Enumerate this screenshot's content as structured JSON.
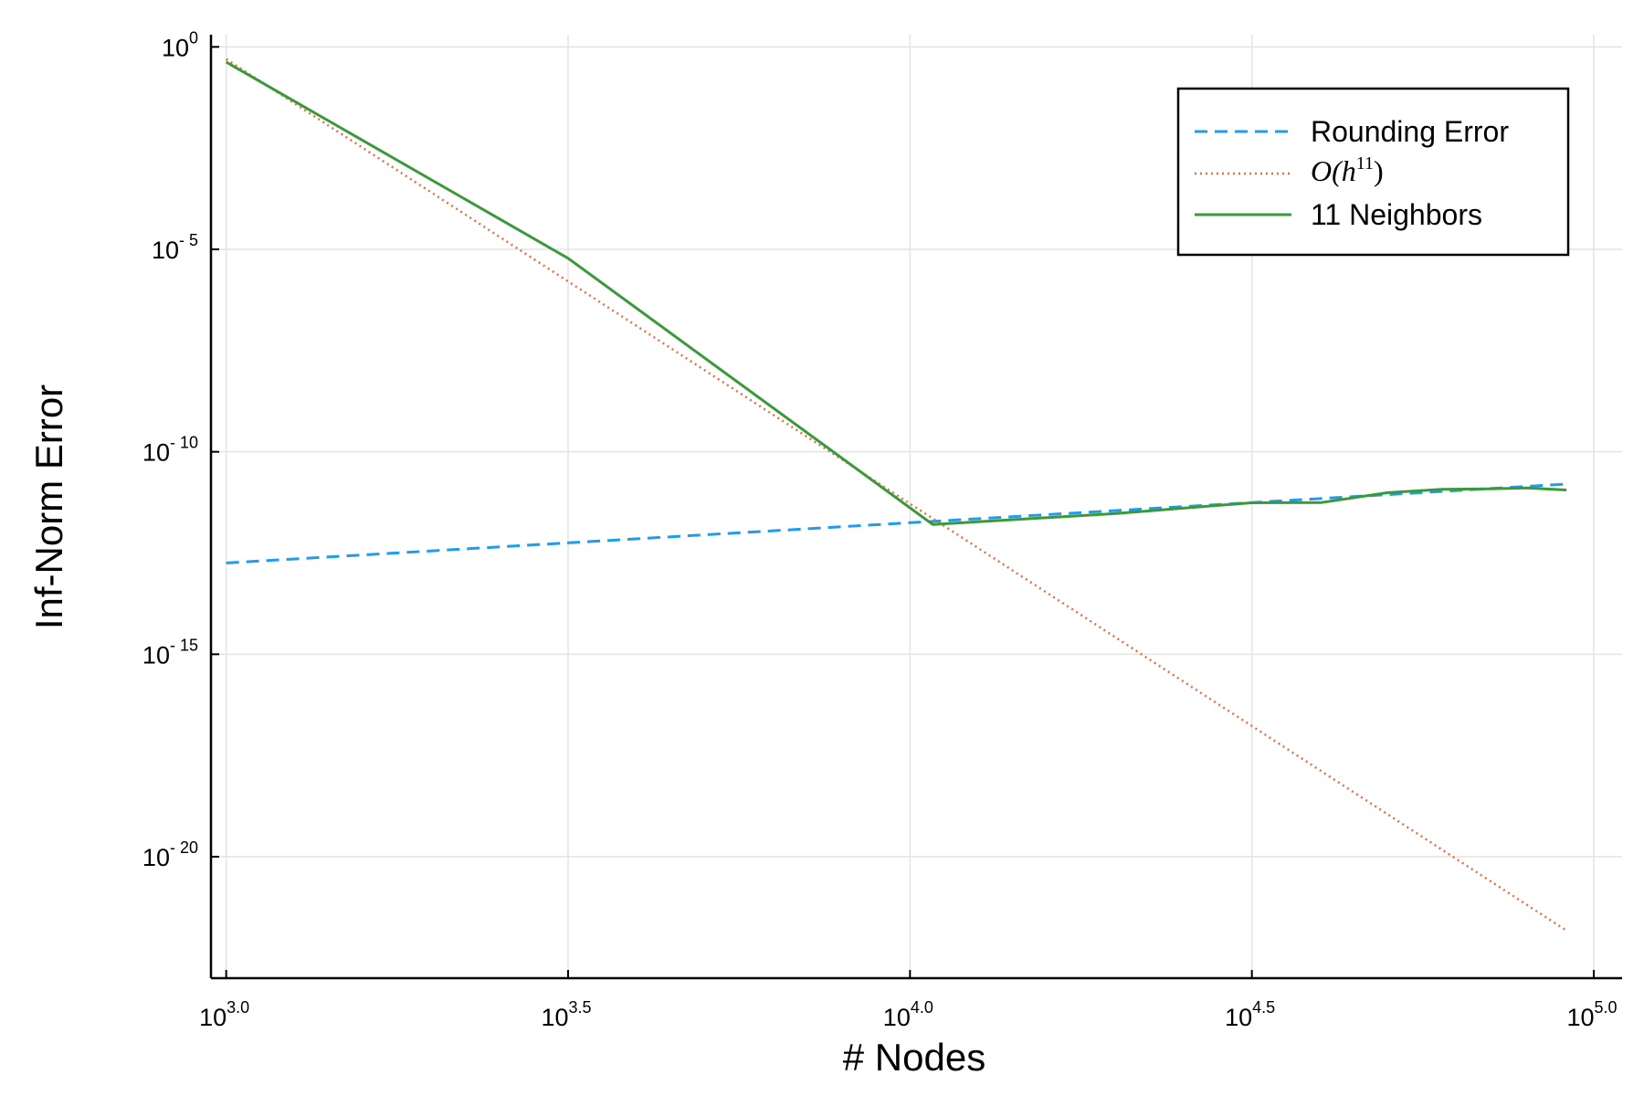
{
  "chart_data": {
    "type": "line",
    "xlabel": "# Nodes",
    "ylabel": "Inf-Norm Error",
    "xscale": "log10",
    "yscale": "log10",
    "xlim": [
      950,
      110000
    ],
    "ylim": [
      1e-23,
      2
    ],
    "grid": true,
    "legend_position": "top-right",
    "x_ticks": [
      {
        "value": 1000,
        "base": "10",
        "exp": "3.0"
      },
      {
        "value": 3162.28,
        "base": "10",
        "exp": "3.5"
      },
      {
        "value": 10000,
        "base": "10",
        "exp": "4.0"
      },
      {
        "value": 31622.8,
        "base": "10",
        "exp": "4.5"
      },
      {
        "value": 100000,
        "base": "10",
        "exp": "5.0"
      }
    ],
    "y_ticks": [
      {
        "value": 1,
        "base": "10",
        "exp": "0"
      },
      {
        "value": 1e-05,
        "base": "10",
        "exp": "- 5"
      },
      {
        "value": 1e-10,
        "base": "10",
        "exp": "- 10"
      },
      {
        "value": 1e-15,
        "base": "10",
        "exp": "- 15"
      },
      {
        "value": 1e-20,
        "base": "10",
        "exp": "- 20"
      }
    ],
    "series": [
      {
        "name": "Rounding Error",
        "color": "#1f9ceb",
        "style": "dashed",
        "x": [
          1000,
          91200
        ],
        "y": [
          1.8e-13,
          1.6e-11
        ]
      },
      {
        "name": "O(h11)",
        "legend_math": {
          "base": "O(h",
          "sup": "11",
          "close": ")"
        },
        "color": "#e26f46",
        "style": "dotted",
        "x": [
          1000,
          91200
        ],
        "y": [
          0.5,
          1.5e-22
        ]
      },
      {
        "name": "11 Neighbors",
        "color": "#3a9a3a",
        "style": "solid",
        "x": [
          1000,
          3162,
          10800,
          20000,
          31600,
          40000,
          50000,
          60000,
          70000,
          80000,
          91200
        ],
        "y": [
          0.42,
          6e-06,
          1.6e-12,
          3e-12,
          5.5e-12,
          5.6e-12,
          9.8e-12,
          1.18e-11,
          1.22e-11,
          1.28e-11,
          1.14e-11
        ]
      }
    ]
  }
}
